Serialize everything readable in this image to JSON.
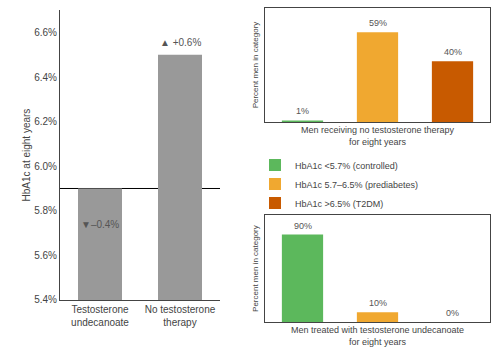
{
  "chart_data": [
    {
      "type": "bar",
      "categories": [
        "Testosterone\nundecanoate",
        "No testosterone\ntherapy"
      ],
      "values": [
        5.9,
        6.5
      ],
      "color": "#999999",
      "ylabel": "HbA1c at eight years",
      "ylim": [
        5.4,
        6.7
      ],
      "yticks": [
        {
          "value": 5.4,
          "label": "5.4%"
        },
        {
          "value": 5.6,
          "label": "5.6%"
        },
        {
          "value": 5.8,
          "label": "5.8%"
        },
        {
          "value": 6.0,
          "label": "6.0%"
        },
        {
          "value": 6.2,
          "label": "6.2%"
        },
        {
          "value": 6.4,
          "label": "6.4%"
        },
        {
          "value": 6.6,
          "label": "6.6%"
        }
      ],
      "grid": false,
      "baseline": 5.9,
      "annotations": [
        {
          "text": "▼–0.4%",
          "x": "Testosterone\nundecanoate",
          "y": 5.77,
          "color": "#555555"
        },
        {
          "text": "▲ +0.6%",
          "x": "No testosterone\ntherapy",
          "y": 6.52,
          "color": "#555555"
        }
      ]
    },
    {
      "type": "bar",
      "categories": [
        "HbA1c <5.7% (controlled)",
        "HbA1c 5.7–6.5% (prediabetes)",
        "HbA1c >6.5% (T2DM)"
      ],
      "values": [
        1,
        59,
        40
      ],
      "value_labels": [
        "1%",
        "59%",
        "40%"
      ],
      "data_labels": true,
      "colors": [
        "#5cb85c",
        "#f0a830",
        "#c85a00"
      ],
      "xlabel": "Men receiving no testosterone therapy\nfor eight years",
      "ylabel": "Percent men in category",
      "ylim": [
        0,
        75
      ],
      "yticks": [],
      "tick_labels": false,
      "grid": false,
      "legend": "right"
    },
    {
      "type": "bar",
      "categories": [
        "HbA1c <5.7% (controlled)",
        "HbA1c 5.7–6.5% (prediabetes)",
        "HbA1c >6.5% (T2DM)"
      ],
      "values": [
        90,
        10,
        0
      ],
      "value_labels": [
        "90%",
        "10%",
        "0%"
      ],
      "data_labels": true,
      "colors": [
        "#5cb85c",
        "#f0a830",
        "#c85a00"
      ],
      "xlabel": "Men treated with testosterone undecanoate\nfor eight years",
      "ylabel": "Percent men in category",
      "ylim": [
        0,
        110
      ],
      "yticks": [],
      "tick_labels": false,
      "grid": false
    }
  ]
}
